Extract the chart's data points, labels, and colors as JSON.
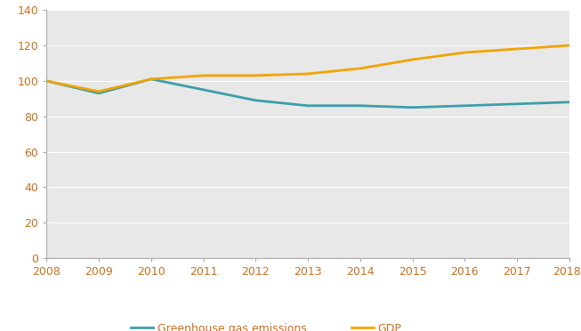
{
  "years": [
    2008,
    2009,
    2010,
    2011,
    2012,
    2013,
    2014,
    2015,
    2016,
    2017,
    2018
  ],
  "x_labels": [
    "2008",
    "2009",
    "2010",
    "2011",
    "2012",
    "2013",
    "2014",
    "2015",
    "2016",
    "2017",
    "2018*"
  ],
  "ghg": [
    100,
    93,
    101,
    95,
    89,
    86,
    86,
    85,
    86,
    87,
    88
  ],
  "gdp": [
    100,
    94,
    101,
    103,
    103,
    104,
    107,
    112,
    116,
    118,
    120
  ],
  "ghg_color": "#3c9eaa",
  "gdp_color": "#f0a500",
  "plot_bg_color": "#e8e8e8",
  "fig_bg_color": "#ffffff",
  "line_width": 2.0,
  "ylim": [
    0,
    140
  ],
  "yticks": [
    0,
    20,
    40,
    60,
    80,
    100,
    120,
    140
  ],
  "legend_ghg": "Greenhouse gas emissions",
  "legend_gdp": "GDP",
  "tick_fontsize": 9,
  "legend_fontsize": 9,
  "axis_label_color": "#c87020",
  "grid_color": "#ffffff",
  "spine_color": "#aaaaaa"
}
